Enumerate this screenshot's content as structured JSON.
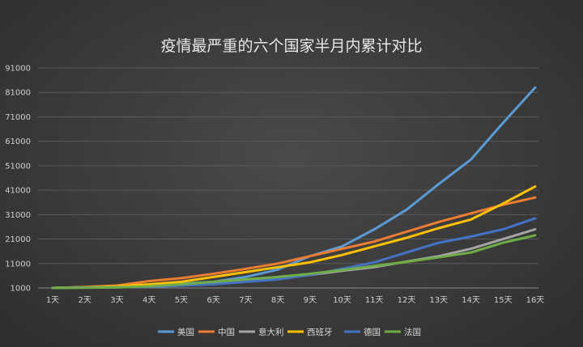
{
  "chart_data": {
    "type": "line",
    "title": "疫情最严重的六个国家半月内累计对比",
    "categories": [
      "1天",
      "2天",
      "3天",
      "4天",
      "5天",
      "6天",
      "7天",
      "8天",
      "9天",
      "10天",
      "11天",
      "12天",
      "13天",
      "14天",
      "15天",
      "16天"
    ],
    "y_ticks": [
      "1000",
      "11000",
      "21000",
      "31000",
      "41000",
      "51000",
      "61000",
      "71000",
      "81000",
      "91000"
    ],
    "ylim": [
      1000,
      91000
    ],
    "grid": true,
    "legend_position": "bottom",
    "series": [
      {
        "name": "美国",
        "color": "#5b9bd5",
        "values": [
          1000,
          1300,
          1500,
          2000,
          2800,
          3500,
          5500,
          8500,
          14000,
          18000,
          25000,
          33000,
          43500,
          53500,
          68500,
          83000
        ]
      },
      {
        "name": "中国",
        "color": "#ed7d31",
        "values": [
          1000,
          1400,
          2000,
          3800,
          5000,
          6800,
          8800,
          11000,
          14000,
          17000,
          20000,
          24000,
          28000,
          31500,
          35000,
          38000
        ]
      },
      {
        "name": "意大利",
        "color": "#a5a5a5",
        "values": [
          1000,
          1200,
          1300,
          1500,
          2000,
          2800,
          4000,
          5000,
          6300,
          8000,
          9500,
          11800,
          14000,
          17000,
          21000,
          25000
        ]
      },
      {
        "name": "西班牙",
        "color": "#ffc000",
        "values": [
          1000,
          1300,
          1700,
          2500,
          3500,
          5500,
          7500,
          9500,
          11500,
          14500,
          18000,
          21500,
          25500,
          29000,
          35500,
          42500
        ]
      },
      {
        "name": "德国",
        "color": "#4472c4",
        "values": [
          1000,
          1200,
          1300,
          1500,
          2000,
          2500,
          3500,
          4500,
          6300,
          8800,
          11500,
          15500,
          19500,
          22000,
          25000,
          29500
        ]
      },
      {
        "name": "法国",
        "color": "#70ad47",
        "values": [
          1000,
          1100,
          1200,
          1700,
          2500,
          3500,
          4500,
          5500,
          6800,
          8300,
          10000,
          11700,
          13500,
          15500,
          19500,
          22500
        ]
      }
    ]
  }
}
